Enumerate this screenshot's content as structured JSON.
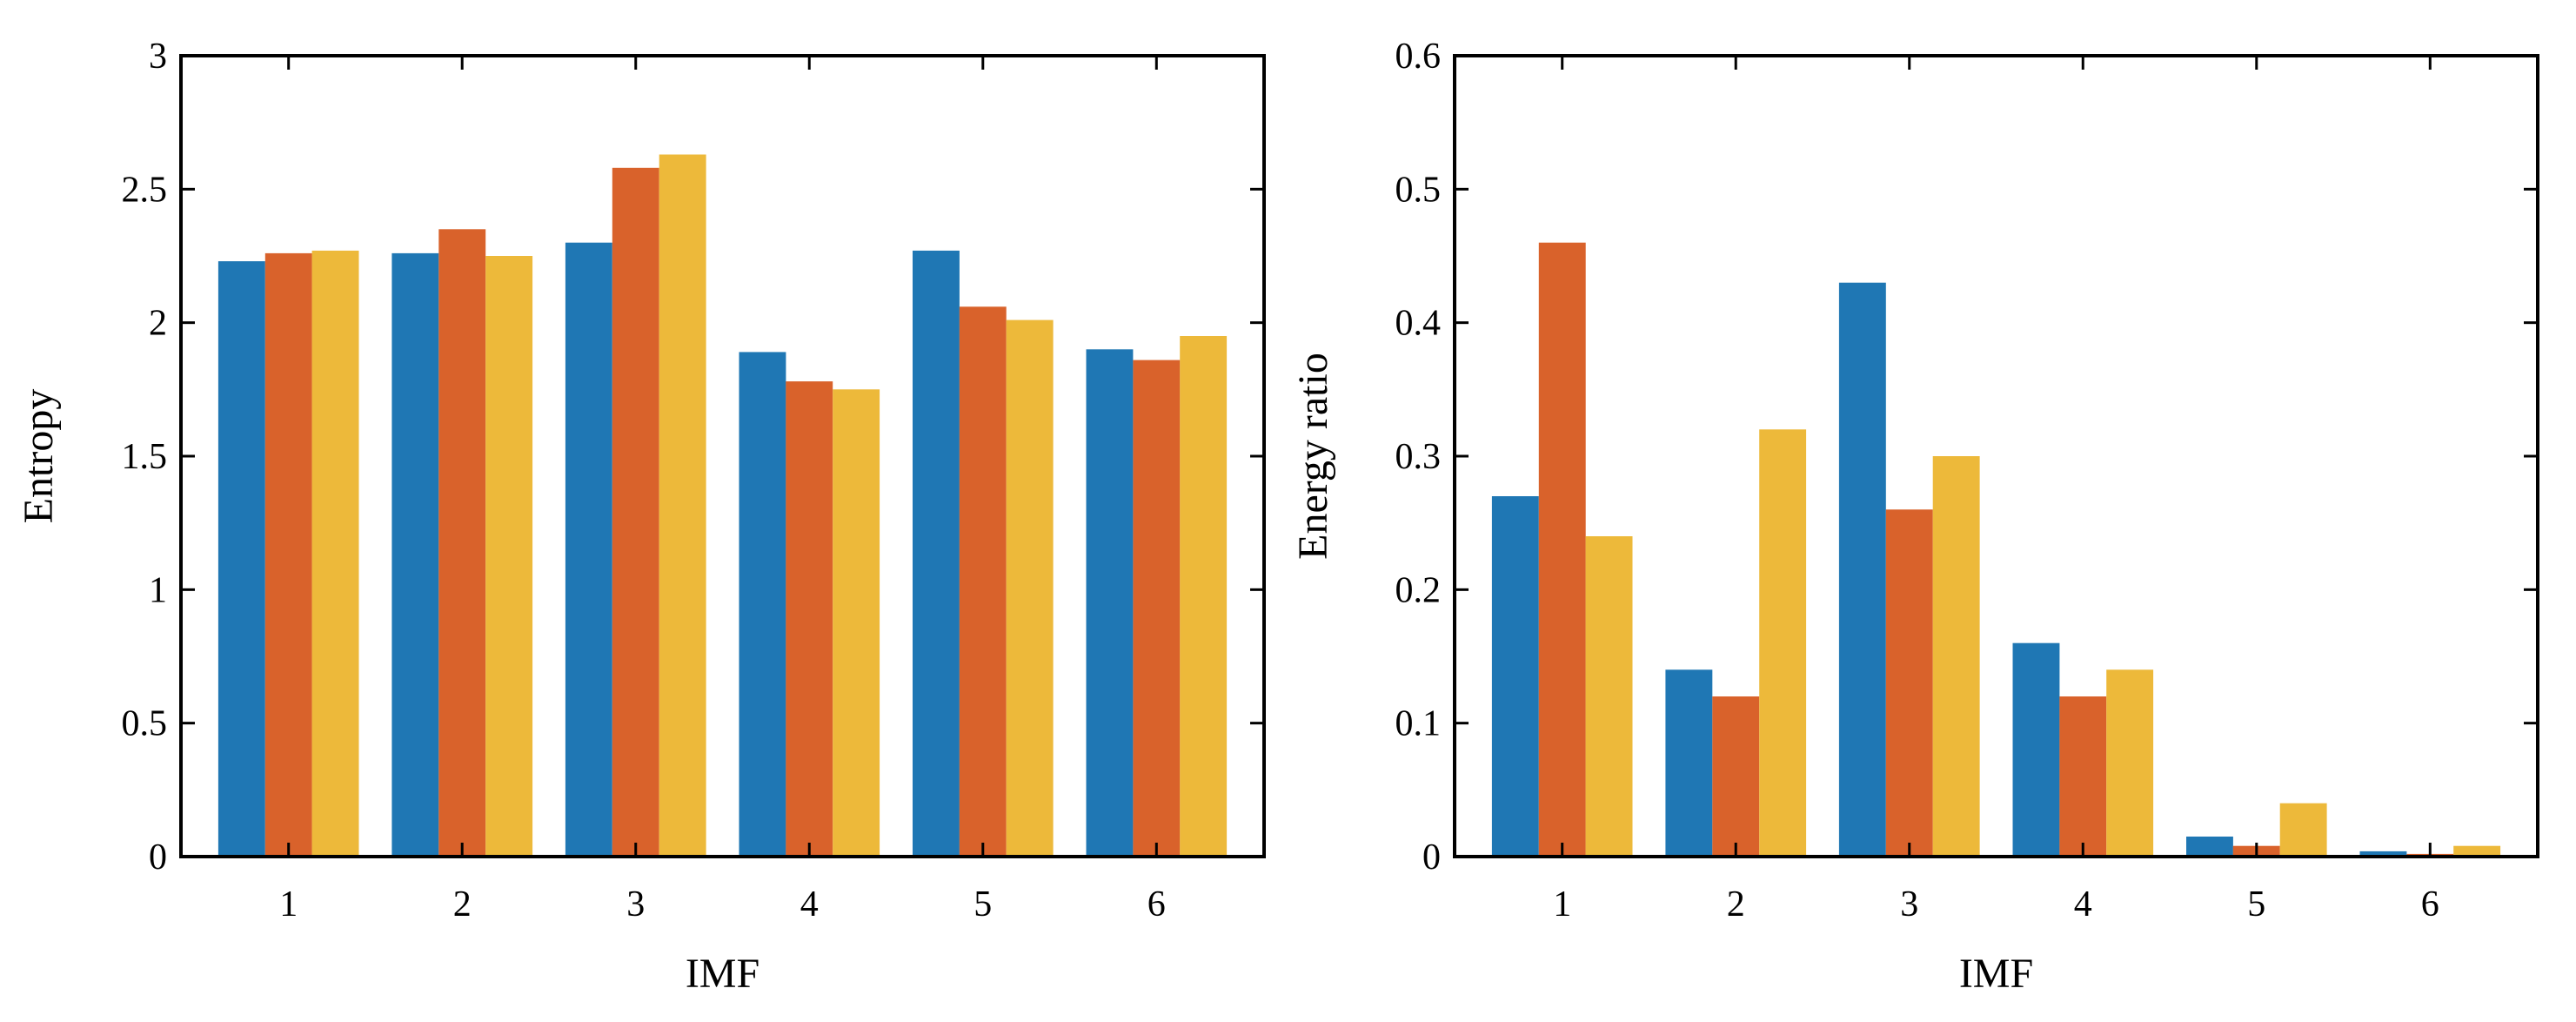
{
  "colors": {
    "blue": "#1f77b4",
    "orange": "#d9622b",
    "yellow": "#edb93a",
    "axis": "#000000"
  },
  "chart_data": [
    {
      "type": "bar",
      "categories": [
        "1",
        "2",
        "3",
        "4",
        "5",
        "6"
      ],
      "xlabel": "IMF",
      "ylabel": "Entropy",
      "ylim": [
        0,
        3
      ],
      "yticks": [
        0,
        0.5,
        1,
        1.5,
        2,
        2.5,
        3
      ],
      "ytick_labels": [
        "0",
        "0.5",
        "1",
        "1.5",
        "2",
        "2.5",
        "3"
      ],
      "grid": false,
      "series": [
        {
          "color": "blue",
          "values": [
            2.23,
            2.26,
            2.3,
            1.89,
            2.27,
            1.9
          ]
        },
        {
          "color": "orange",
          "values": [
            2.26,
            2.35,
            2.58,
            1.78,
            2.06,
            1.86
          ]
        },
        {
          "color": "yellow",
          "values": [
            2.27,
            2.25,
            2.63,
            1.75,
            2.01,
            1.95
          ]
        }
      ]
    },
    {
      "type": "bar",
      "categories": [
        "1",
        "2",
        "3",
        "4",
        "5",
        "6"
      ],
      "xlabel": "IMF",
      "ylabel": "Energy ratio",
      "ylim": [
        0,
        0.6
      ],
      "yticks": [
        0,
        0.1,
        0.2,
        0.3,
        0.4,
        0.5,
        0.6
      ],
      "ytick_labels": [
        "0",
        "0.1",
        "0.2",
        "0.3",
        "0.4",
        "0.5",
        "0.6"
      ],
      "grid": false,
      "series": [
        {
          "color": "blue",
          "values": [
            0.27,
            0.14,
            0.43,
            0.16,
            0.015,
            0.004
          ]
        },
        {
          "color": "orange",
          "values": [
            0.46,
            0.12,
            0.26,
            0.12,
            0.008,
            0.002
          ]
        },
        {
          "color": "yellow",
          "values": [
            0.24,
            0.32,
            0.3,
            0.14,
            0.04,
            0.008
          ]
        }
      ]
    }
  ]
}
